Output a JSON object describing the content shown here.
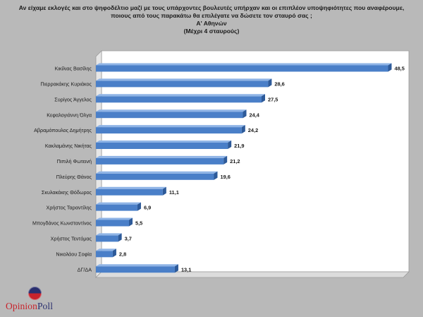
{
  "chart_data": {
    "type": "bar",
    "orientation": "horizontal",
    "title_lines": [
      "Αν είχαμε εκλογές και στο ψηφοδέλτιο μαζί με τους υπάρχοντες βουλευτές υπήρχαν και οι επιπλέον υποψηφιότητες που αναφέρουμε,",
      "ποιους από τους παρακάτω θα επιλέγατε να δώσετε τον σταυρό σας ;",
      "Α' Αθηνών",
      "(Μέχρι 4 σταυρούς)"
    ],
    "categories": [
      "Κικίλιας Βασίλης",
      "Πιερρακάκης Κυριάκος",
      "Συρίγος Άγγελος",
      "Κεφαλογιάννη Όλγα",
      "Αβραμόπουλος Δημήτρης",
      "Κακλαμάνης Νικήτας",
      "Πιπιλή Φωτεινή",
      "Πλεύρης Θάνος",
      "Σκυλακάκης Θόδωρος",
      "Χρήστος Ταραντίλης",
      "Μπογδάνος Κωνσταντίνος",
      "Χρήστος Τεντόμας",
      "Νικολάου Σοφία",
      "ΔΓ/ΔΑ"
    ],
    "values": [
      48.5,
      28.6,
      27.5,
      24.4,
      24.2,
      21.9,
      21.2,
      19.6,
      11.1,
      6.9,
      5.5,
      3.7,
      2.8,
      13.1
    ],
    "value_labels": [
      "48,5",
      "28,6",
      "27,5",
      "24,4",
      "24,2",
      "21,9",
      "21,2",
      "19,6",
      "11,1",
      "6,9",
      "5,5",
      "3,7",
      "2,8",
      "13,1"
    ],
    "xlim": [
      0,
      50
    ],
    "grid": false,
    "bar_color": "#4a7fc8",
    "bar_side_color": "#2d5a99",
    "bar_top_color": "#8fb4e6"
  },
  "branding": {
    "logo_icon": "opinionpoll-circle-logo",
    "logo_part1": "Opinion",
    "logo_part2": "Poll"
  }
}
